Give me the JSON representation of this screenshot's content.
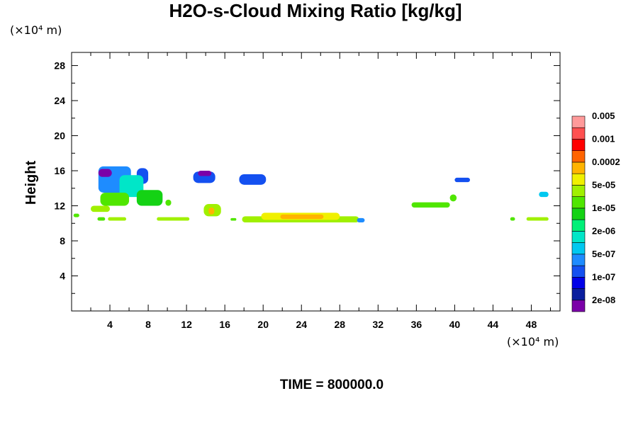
{
  "chart_data": {
    "type": "heatmap",
    "title": "H2O-s-Cloud Mixing Ratio [kg/kg]",
    "ylabel": "Height",
    "y_unit": "(×10⁴ m)",
    "x_unit": "(×10⁴ m)",
    "footer": "TIME = 800000.0",
    "xlim": [
      0,
      51
    ],
    "ylim": [
      0,
      29.5
    ],
    "x_ticks": [
      4,
      8,
      12,
      16,
      20,
      24,
      28,
      32,
      36,
      40,
      44,
      48
    ],
    "y_ticks": [
      4,
      8,
      12,
      16,
      20,
      24,
      28
    ],
    "colorbar": {
      "colors": [
        "#7b00a8",
        "#0a1e9e",
        "#0000e8",
        "#1450f0",
        "#1e8cff",
        "#00c8f0",
        "#00e6c8",
        "#00f078",
        "#14d214",
        "#50e600",
        "#a0f000",
        "#f0f000",
        "#ffb400",
        "#ff6400",
        "#ff0000",
        "#ff5050",
        "#ff9a9a"
      ],
      "labels": [
        "2e-08",
        "1e-07",
        "5e-07",
        "2e-06",
        "1e-05",
        "5e-05",
        "0.0002",
        "0.001",
        "0.005"
      ]
    },
    "regions": [
      {
        "x": [
          2.8,
          6.2
        ],
        "y": [
          13.5,
          16.5
        ],
        "color": "#1e8cff"
      },
      {
        "x": [
          2.8,
          4.2
        ],
        "y": [
          15.3,
          16.2
        ],
        "color": "#7b00a8"
      },
      {
        "x": [
          6.8,
          8.0
        ],
        "y": [
          14.5,
          16.3
        ],
        "color": "#1450f0"
      },
      {
        "x": [
          5.0,
          7.5
        ],
        "y": [
          13.0,
          15.5
        ],
        "color": "#00e6c8"
      },
      {
        "x": [
          3.0,
          6.0
        ],
        "y": [
          12.0,
          13.5
        ],
        "color": "#50e600"
      },
      {
        "x": [
          2.0,
          4.0
        ],
        "y": [
          11.3,
          12.0
        ],
        "color": "#a0f000"
      },
      {
        "x": [
          6.8,
          9.5
        ],
        "y": [
          12.0,
          13.8
        ],
        "color": "#14d214"
      },
      {
        "x": [
          9.8,
          10.4
        ],
        "y": [
          12.0,
          12.7
        ],
        "color": "#50e600"
      },
      {
        "x": [
          0.2,
          0.8
        ],
        "y": [
          10.7,
          11.1
        ],
        "color": "#50e600"
      },
      {
        "x": [
          2.7,
          3.5
        ],
        "y": [
          10.3,
          10.7
        ],
        "color": "#50e600"
      },
      {
        "x": [
          3.8,
          5.7
        ],
        "y": [
          10.3,
          10.7
        ],
        "color": "#a0f000"
      },
      {
        "x": [
          8.9,
          12.3
        ],
        "y": [
          10.3,
          10.7
        ],
        "color": "#a0f000"
      },
      {
        "x": [
          12.7,
          15.0
        ],
        "y": [
          14.6,
          15.9
        ],
        "color": "#1450f0"
      },
      {
        "x": [
          13.2,
          14.6
        ],
        "y": [
          15.4,
          16.0
        ],
        "color": "#7b00a8"
      },
      {
        "x": [
          17.5,
          20.3
        ],
        "y": [
          14.4,
          15.6
        ],
        "color": "#1450f0"
      },
      {
        "x": [
          13.8,
          15.6
        ],
        "y": [
          10.8,
          12.2
        ],
        "color": "#a0f000"
      },
      {
        "x": [
          14.3,
          14.9
        ],
        "y": [
          11.0,
          11.8
        ],
        "color": "#ffb400"
      },
      {
        "x": [
          16.6,
          17.2
        ],
        "y": [
          10.3,
          10.6
        ],
        "color": "#50e600"
      },
      {
        "x": [
          17.8,
          30.0
        ],
        "y": [
          10.1,
          10.8
        ],
        "color": "#a0f000"
      },
      {
        "x": [
          19.8,
          28.0
        ],
        "y": [
          10.4,
          11.2
        ],
        "color": "#f0f000"
      },
      {
        "x": [
          21.8,
          26.3
        ],
        "y": [
          10.5,
          11.0
        ],
        "color": "#ffb400"
      },
      {
        "x": [
          29.8,
          30.6
        ],
        "y": [
          10.1,
          10.6
        ],
        "color": "#1e8cff"
      },
      {
        "x": [
          35.5,
          39.5
        ],
        "y": [
          11.8,
          12.4
        ],
        "color": "#50e600"
      },
      {
        "x": [
          39.5,
          40.2
        ],
        "y": [
          12.5,
          13.3
        ],
        "color": "#50e600"
      },
      {
        "x": [
          40.0,
          41.6
        ],
        "y": [
          14.7,
          15.2
        ],
        "color": "#1450f0"
      },
      {
        "x": [
          45.8,
          46.3
        ],
        "y": [
          10.3,
          10.7
        ],
        "color": "#50e600"
      },
      {
        "x": [
          47.5,
          49.8
        ],
        "y": [
          10.3,
          10.7
        ],
        "color": "#a0f000"
      },
      {
        "x": [
          48.8,
          49.8
        ],
        "y": [
          13.0,
          13.6
        ],
        "color": "#00c8f0"
      }
    ]
  }
}
